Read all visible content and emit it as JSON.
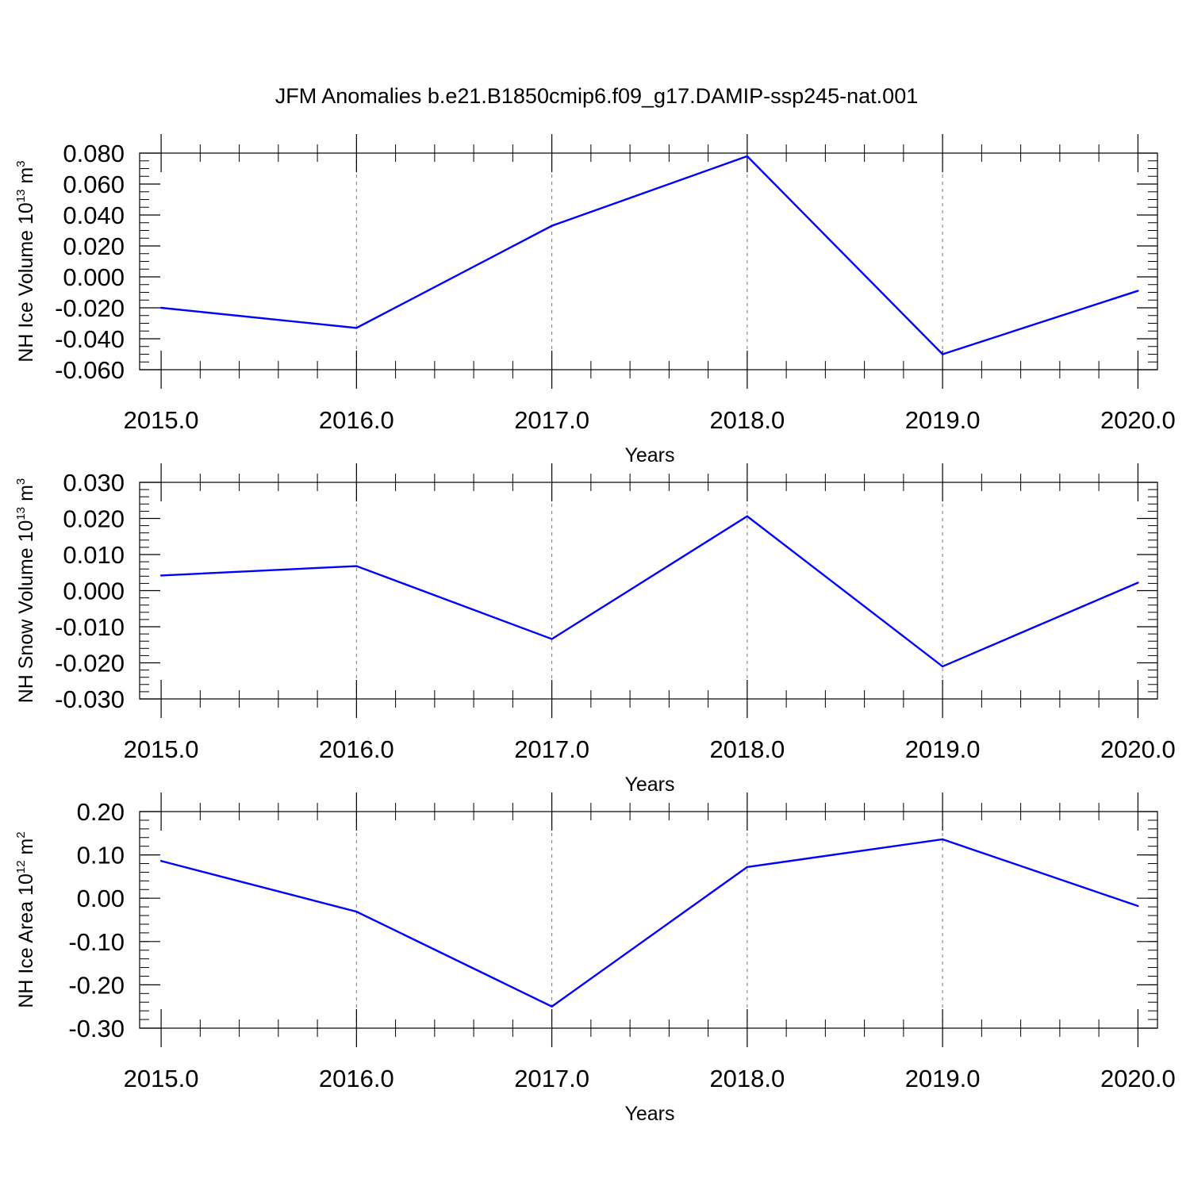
{
  "title": "JFM Anomalies b.e21.B1850cmip6.f09_g17.DAMIP-ssp245-nat.001",
  "line_color": "#0000ff",
  "chart_data": [
    {
      "type": "line",
      "ylabel": {
        "text": "NH Ice Volume 10",
        "exp": "13",
        "unit": " m",
        "unit_exp": "3"
      },
      "xlabel": "Years",
      "x": [
        2015,
        2016,
        2017,
        2018,
        2019,
        2020
      ],
      "values": [
        -0.02,
        -0.033,
        0.033,
        0.078,
        -0.05,
        -0.009
      ],
      "xlim": [
        2014.89,
        2020.1
      ],
      "ylim": [
        -0.06,
        0.08
      ],
      "xticks": [
        2015,
        2016,
        2017,
        2018,
        2019,
        2020
      ],
      "xtick_labels": [
        "2015.0",
        "2016.0",
        "2017.0",
        "2018.0",
        "2019.0",
        "2020.0"
      ],
      "yticks": [
        0.08,
        0.06,
        0.04,
        0.02,
        0.0,
        -0.02,
        -0.04,
        -0.06
      ],
      "ytick_labels": [
        "0.080",
        "0.060",
        "0.040",
        "0.020",
        "0.000",
        "-0.020",
        "-0.040",
        "-0.060"
      ],
      "ymin_step": 0.005,
      "grid": "x-dashed"
    },
    {
      "type": "line",
      "ylabel": {
        "text": "NH Snow Volume 10",
        "exp": "13",
        "unit": " m",
        "unit_exp": "3"
      },
      "xlabel": "Years",
      "x": [
        2015,
        2016,
        2017,
        2018,
        2019,
        2020
      ],
      "values": [
        0.0042,
        0.0068,
        -0.0134,
        0.0206,
        -0.021,
        0.0022
      ],
      "xlim": [
        2014.89,
        2020.1
      ],
      "ylim": [
        -0.03,
        0.03
      ],
      "xticks": [
        2015,
        2016,
        2017,
        2018,
        2019,
        2020
      ],
      "xtick_labels": [
        "2015.0",
        "2016.0",
        "2017.0",
        "2018.0",
        "2019.0",
        "2020.0"
      ],
      "yticks": [
        0.03,
        0.02,
        0.01,
        0.0,
        -0.01,
        -0.02,
        -0.03
      ],
      "ytick_labels": [
        "0.030",
        "0.020",
        "0.010",
        "0.000",
        "-0.010",
        "-0.020",
        "-0.030"
      ],
      "ymin_step": 0.002,
      "grid": "x-dashed"
    },
    {
      "type": "line",
      "ylabel": {
        "text": "NH Ice Area 10",
        "exp": "12",
        "unit": " m",
        "unit_exp": "2"
      },
      "xlabel": "Years",
      "x": [
        2015,
        2016,
        2017,
        2018,
        2019,
        2020
      ],
      "values": [
        0.086,
        -0.031,
        -0.25,
        0.072,
        0.136,
        -0.018
      ],
      "xlim": [
        2014.89,
        2020.1
      ],
      "ylim": [
        -0.3,
        0.2
      ],
      "xticks": [
        2015,
        2016,
        2017,
        2018,
        2019,
        2020
      ],
      "xtick_labels": [
        "2015.0",
        "2016.0",
        "2017.0",
        "2018.0",
        "2019.0",
        "2020.0"
      ],
      "yticks": [
        0.2,
        0.1,
        0.0,
        -0.1,
        -0.2,
        -0.3
      ],
      "ytick_labels": [
        "0.20",
        "0.10",
        "0.00",
        "-0.10",
        "-0.20",
        "-0.30"
      ],
      "ymin_step": 0.02,
      "grid": "x-dashed"
    }
  ]
}
